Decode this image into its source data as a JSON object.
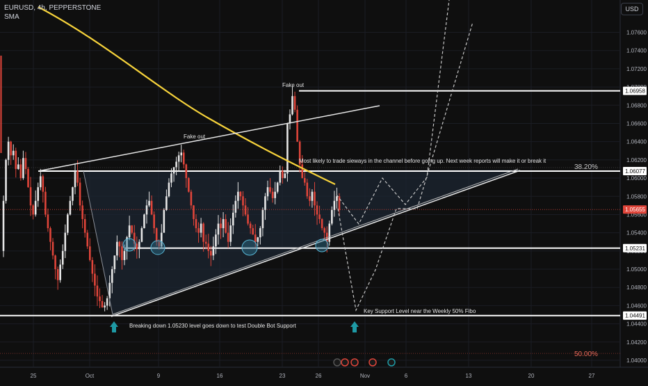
{
  "header": {
    "symbol": "EURUSD, 4h, PEPPERSTONE",
    "indicator": "SMA",
    "currency": "USD"
  },
  "colors": {
    "background": "#0f0f0f",
    "bull_candle": "#e6e6e6",
    "bear_candle": "#e0453a",
    "sma": "#f7d33b",
    "levels": "#ffffff",
    "arrow": "#1e9aa5",
    "fibo_label": "#c8c8c8",
    "fibo_50": "#f06a5a",
    "circle_fill": "#2a6e8c"
  },
  "chart_data": {
    "type": "candlestick",
    "symbol": "EURUSD",
    "timeframe": "4h",
    "price_axis": {
      "range": [
        1.0395,
        1.0815
      ],
      "ticks": [
        "1.07600",
        "1.07400",
        "1.07200",
        "1.07000",
        "1.06800",
        "1.06600",
        "1.06400",
        "1.06200",
        "1.06000",
        "1.05800",
        "1.05600",
        "1.05400",
        "1.05200",
        "1.05000",
        "1.04800",
        "1.04600",
        "1.04400",
        "1.04200",
        "1.04000"
      ]
    },
    "time_axis": {
      "ticks": [
        "25",
        "Oct",
        "9",
        "16",
        "23",
        "26",
        "Nov",
        "6",
        "13",
        "20",
        "27"
      ]
    },
    "price_labels": [
      {
        "value": "1.06958",
        "price": 1.06958
      },
      {
        "value": "1.06077",
        "price": 1.06077
      },
      {
        "value": "1.05655",
        "price": 1.05655,
        "current": true
      },
      {
        "value": "1.05231",
        "price": 1.05231
      },
      {
        "value": "1.04491",
        "price": 1.04491
      }
    ],
    "fib_levels": [
      {
        "label": "38.20%",
        "price": 1.06077
      },
      {
        "label": "50.00%",
        "price": 1.04075
      }
    ],
    "annotations": [
      {
        "text": "Fake out",
        "id": "fakeout-top"
      },
      {
        "text": "Fake out",
        "id": "fakeout-mid"
      },
      {
        "text": "Most likely to trade sieways in the channel before going up. Next week reports will make it or break it"
      },
      {
        "text": "Breaking down 1.05230 level goes down to test Double Bot Support"
      },
      {
        "text": "Key Support Level near the Weekly 50% Fibo"
      }
    ],
    "sma": {
      "name": "SMA"
    },
    "candles_close": [
      1.0575,
      1.062,
      1.064,
      1.0625,
      1.063,
      1.061,
      1.0615,
      1.06,
      1.0622,
      1.061,
      1.059,
      1.057,
      1.056,
      1.0575,
      1.059,
      1.0602,
      1.0585,
      1.056,
      1.0545,
      1.053,
      1.0515,
      1.05,
      1.0488,
      1.0505,
      1.052,
      1.054,
      1.056,
      1.0575,
      1.059,
      1.0608,
      1.0595,
      1.057,
      1.0555,
      1.054,
      1.0525,
      1.051,
      1.0495,
      1.0482,
      1.047,
      1.0465,
      1.0458,
      1.046,
      1.0468,
      1.0485,
      1.05,
      1.0515,
      1.053,
      1.0525,
      1.051,
      1.052,
      1.0535,
      1.0548,
      1.054,
      1.0528,
      1.0522,
      1.053,
      1.0545,
      1.056,
      1.057,
      1.0575,
      1.056,
      1.0545,
      1.053,
      1.0525,
      1.054,
      1.0565,
      1.058,
      1.0595,
      1.0605,
      1.0612,
      1.0618,
      1.0625,
      1.0628,
      1.0615,
      1.06,
      1.0585,
      1.057,
      1.0555,
      1.0545,
      1.054,
      1.055,
      1.053,
      1.0528,
      1.052,
      1.0515,
      1.0525,
      1.0538,
      1.055,
      1.0545,
      1.0555,
      1.054,
      1.053,
      1.0548,
      1.0562,
      1.0575,
      1.0585,
      1.058,
      1.057,
      1.056,
      1.055,
      1.0545,
      1.0538,
      1.053,
      1.0535,
      1.0545,
      1.0565,
      1.058,
      1.059,
      1.0585,
      1.0578,
      1.0585,
      1.0595,
      1.0608,
      1.06,
      1.0605,
      1.066,
      1.067,
      1.069,
      1.0675,
      1.064,
      1.0615,
      1.06,
      1.0595,
      1.058,
      1.0575,
      1.0585,
      1.057,
      1.056,
      1.0555,
      1.0545,
      1.054,
      1.053,
      1.055,
      1.0565,
      1.0575,
      1.058,
      1.0565
    ]
  }
}
